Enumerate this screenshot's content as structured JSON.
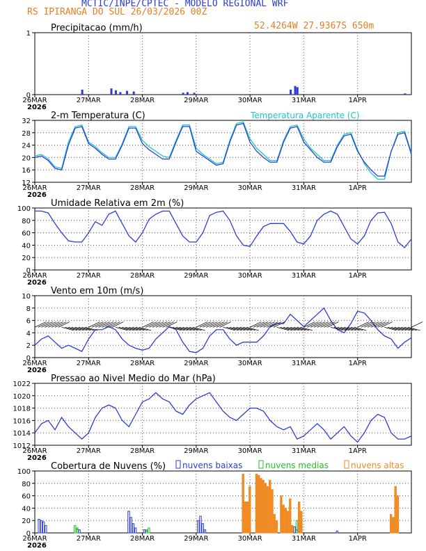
{
  "header": {
    "line1": "MCTIC/INPE/CPTEC - MODELO REGIONAL WRF",
    "line2": "RS IPIRANGA DO SUL    26/03/2026 00Z",
    "location": "52.4264W 27.9367S 650m"
  },
  "colors": {
    "blue": "#2a3cd6",
    "cyan": "#18c7c7",
    "green": "#22c022",
    "orange": "#f08a22",
    "grid": "#555555"
  },
  "x_axis": {
    "labels": [
      "26MAR",
      "27MAR",
      "28MAR",
      "29MAR",
      "30MAR",
      "31MAR",
      "1APR"
    ],
    "year": "2026",
    "hours": [
      0,
      24,
      48,
      72,
      96,
      120,
      144
    ],
    "max_hour": 168
  },
  "chart_data": [
    {
      "type": "bar",
      "title": "Precipitacao (mm/h)",
      "ylim": [
        0,
        1
      ],
      "yticks": [
        0,
        1
      ],
      "hours": [
        21,
        34,
        36,
        38,
        41,
        44,
        66,
        68,
        71,
        114,
        116,
        117,
        165
      ],
      "values": [
        0.08,
        0.1,
        0.07,
        0.04,
        0.06,
        0.05,
        0.03,
        0.04,
        0.03,
        0.08,
        0.14,
        0.12,
        0.02
      ]
    },
    {
      "type": "line",
      "title": "2-m Temperatura (C)",
      "legend": "Temperatura Aparente (C)",
      "ylim": [
        12,
        32
      ],
      "yticks": [
        12,
        16,
        20,
        24,
        28,
        32
      ],
      "series": [
        {
          "name": "2-m Temperatura (C)",
          "hours": [
            0,
            3,
            6,
            9,
            12,
            15,
            18,
            21,
            24,
            27,
            30,
            33,
            36,
            39,
            42,
            45,
            48,
            51,
            54,
            57,
            60,
            63,
            66,
            69,
            72,
            75,
            78,
            81,
            84,
            87,
            90,
            93,
            96,
            99,
            102,
            105,
            108,
            111,
            114,
            117,
            120,
            123,
            126,
            129,
            132,
            135,
            138,
            141,
            144,
            147,
            150,
            153,
            156,
            159,
            162,
            165,
            168
          ],
          "values": [
            20,
            20.5,
            19,
            16.5,
            16,
            24,
            29.5,
            30,
            24.5,
            23,
            21,
            19.5,
            19.5,
            24,
            29.5,
            29.5,
            24.5,
            22.5,
            21,
            19.5,
            19.5,
            25,
            30,
            30,
            22,
            20.5,
            19,
            17.5,
            18,
            25,
            30.5,
            31,
            25,
            22,
            20,
            18.5,
            18.5,
            25,
            29.5,
            30,
            25,
            22.5,
            20,
            18.5,
            18.5,
            23.5,
            27,
            27.5,
            22,
            18.5,
            16,
            14,
            14,
            22,
            27.5,
            28,
            21
          ]
        },
        {
          "name": "Temperatura Aparente (C)",
          "hours": [
            0,
            3,
            6,
            9,
            12,
            15,
            18,
            21,
            24,
            27,
            30,
            33,
            36,
            39,
            42,
            45,
            48,
            51,
            54,
            57,
            60,
            63,
            66,
            69,
            72,
            75,
            78,
            81,
            84,
            87,
            90,
            93,
            96,
            99,
            102,
            105,
            108,
            111,
            114,
            117,
            120,
            123,
            126,
            129,
            132,
            135,
            138,
            141,
            144,
            147,
            150,
            153,
            156,
            159,
            162,
            165,
            168
          ],
          "values": [
            20.5,
            21,
            19.5,
            17,
            16.5,
            25,
            30,
            30.5,
            25,
            23.5,
            21.5,
            20,
            20,
            24.5,
            30,
            30,
            25.5,
            23.5,
            22,
            20.5,
            20,
            25.5,
            30.5,
            30.5,
            23,
            21,
            19.5,
            18,
            18.5,
            25.5,
            31,
            31.5,
            26,
            23,
            21,
            19,
            19,
            25.5,
            30,
            30.5,
            26,
            23,
            21,
            19,
            19,
            24,
            27.5,
            28,
            22.5,
            18,
            15,
            13,
            13,
            22,
            28,
            28.5,
            21.5
          ]
        }
      ]
    },
    {
      "type": "line",
      "title": "Umidade Relativa em 2m (%)",
      "ylim": [
        0,
        100
      ],
      "yticks": [
        0,
        20,
        40,
        60,
        80,
        100
      ],
      "series": [
        {
          "name": "Umidade Relativa em 2m (%)",
          "hours": [
            0,
            3,
            6,
            9,
            12,
            15,
            18,
            21,
            24,
            27,
            30,
            33,
            36,
            39,
            42,
            45,
            48,
            51,
            54,
            57,
            60,
            63,
            66,
            69,
            72,
            75,
            78,
            81,
            84,
            87,
            90,
            93,
            96,
            99,
            102,
            105,
            108,
            111,
            114,
            117,
            120,
            123,
            126,
            129,
            132,
            135,
            138,
            141,
            144,
            147,
            150,
            153,
            156,
            159,
            162,
            165,
            168
          ],
          "values": [
            95,
            95,
            92,
            75,
            60,
            47,
            45,
            45,
            60,
            78,
            72,
            90,
            95,
            75,
            55,
            45,
            60,
            82,
            90,
            95,
            95,
            75,
            55,
            45,
            45,
            60,
            88,
            93,
            95,
            80,
            55,
            40,
            38,
            55,
            70,
            75,
            75,
            75,
            62,
            45,
            42,
            55,
            80,
            90,
            95,
            90,
            70,
            50,
            42,
            55,
            80,
            92,
            93,
            75,
            45,
            36,
            50
          ]
        }
      ]
    },
    {
      "type": "line",
      "title": "Vento em 10m (m/s)",
      "ylim": [
        0,
        10
      ],
      "yticks": [
        0,
        2,
        4,
        6,
        8,
        10
      ],
      "series": [
        {
          "name": "Vento em 10m (m/s)",
          "hours": [
            0,
            3,
            6,
            9,
            12,
            15,
            18,
            21,
            24,
            27,
            30,
            33,
            36,
            39,
            42,
            45,
            48,
            51,
            54,
            57,
            60,
            63,
            66,
            69,
            72,
            75,
            78,
            81,
            84,
            87,
            90,
            93,
            96,
            99,
            102,
            105,
            108,
            111,
            114,
            117,
            120,
            123,
            126,
            129,
            132,
            135,
            138,
            141,
            144,
            147,
            150,
            153,
            156,
            159,
            162,
            165,
            168
          ],
          "values": [
            2,
            3,
            3.5,
            2.5,
            1.5,
            2,
            1.5,
            1,
            3,
            4.5,
            4.5,
            5,
            4.5,
            3,
            2,
            1.5,
            1.2,
            1.5,
            3,
            4,
            5,
            4.5,
            2.5,
            1,
            0.8,
            1.5,
            3.5,
            4.5,
            4.5,
            3,
            2,
            2.5,
            2.5,
            2.5,
            3.5,
            5,
            5.5,
            5.5,
            7,
            6,
            5,
            6,
            7,
            8,
            6,
            4.5,
            4,
            5.5,
            7.5,
            7.2,
            6,
            4.5,
            3.5,
            3,
            1.5,
            2.5,
            3.2
          ]
        }
      ]
    },
    {
      "type": "line",
      "title": "Pressao ao Nivel Medio do Mar (hPa)",
      "ylim": [
        1012,
        1022
      ],
      "yticks": [
        1012,
        1014,
        1016,
        1018,
        1020,
        1022
      ],
      "series": [
        {
          "name": "Pressao ao Nivel Medio do Mar (hPa)",
          "hours": [
            0,
            3,
            6,
            9,
            12,
            15,
            18,
            21,
            24,
            27,
            30,
            33,
            36,
            39,
            42,
            45,
            48,
            51,
            54,
            57,
            60,
            63,
            66,
            69,
            72,
            75,
            78,
            81,
            84,
            87,
            90,
            93,
            96,
            99,
            102,
            105,
            108,
            111,
            114,
            117,
            120,
            123,
            126,
            129,
            132,
            135,
            138,
            141,
            144,
            147,
            150,
            153,
            156,
            159,
            162,
            165,
            168
          ],
          "values": [
            1014,
            1015.5,
            1016,
            1014.5,
            1016.5,
            1015,
            1014,
            1013,
            1014,
            1016.5,
            1018,
            1018.5,
            1018,
            1016,
            1015,
            1017,
            1019,
            1019.5,
            1020.5,
            1019.5,
            1019,
            1017.5,
            1017,
            1018.5,
            1019.5,
            1020,
            1020.5,
            1019,
            1017.5,
            1016.5,
            1016,
            1017,
            1018,
            1018,
            1017.5,
            1016,
            1015,
            1014.5,
            1015,
            1013,
            1013.5,
            1014.5,
            1015.5,
            1014.5,
            1013,
            1014,
            1015,
            1013.5,
            1012.5,
            1014,
            1016,
            1017,
            1016.5,
            1014,
            1013,
            1013,
            1013.5
          ]
        }
      ]
    },
    {
      "type": "bar",
      "title": "Cobertura de Nuvens (%)",
      "legend": [
        "nuvens baixas",
        "nuvens medias",
        "nuvens altas"
      ],
      "ylim": [
        0,
        100
      ],
      "yticks": [
        0,
        20,
        40,
        60,
        80,
        100
      ],
      "series": [
        {
          "name": "nuvens baixas",
          "hours": [
            2,
            3,
            4,
            5,
            19,
            20,
            42,
            43,
            44,
            45,
            49,
            50,
            73,
            74,
            75,
            76,
            116,
            117,
            135
          ],
          "values": [
            22,
            20,
            18,
            12,
            6,
            5,
            35,
            25,
            15,
            8,
            5,
            3,
            20,
            27,
            15,
            5,
            10,
            5,
            3
          ]
        },
        {
          "name": "nuvens medias",
          "hours": [
            18,
            19,
            50,
            51,
            117,
            118,
            119
          ],
          "values": [
            12,
            8,
            5,
            8,
            20,
            28,
            15
          ]
        },
        {
          "name": "nuvens altas",
          "hours": [
            93,
            94,
            95,
            96,
            99,
            100,
            101,
            102,
            103,
            104,
            105,
            106,
            107,
            108,
            110,
            111,
            112,
            113,
            114,
            115,
            118,
            119,
            159,
            160,
            161,
            162
          ],
          "values": [
            95,
            50,
            50,
            75,
            95,
            93,
            88,
            85,
            80,
            75,
            85,
            70,
            30,
            20,
            60,
            45,
            40,
            35,
            55,
            12,
            50,
            35,
            30,
            25,
            75,
            60
          ]
        }
      ]
    }
  ]
}
